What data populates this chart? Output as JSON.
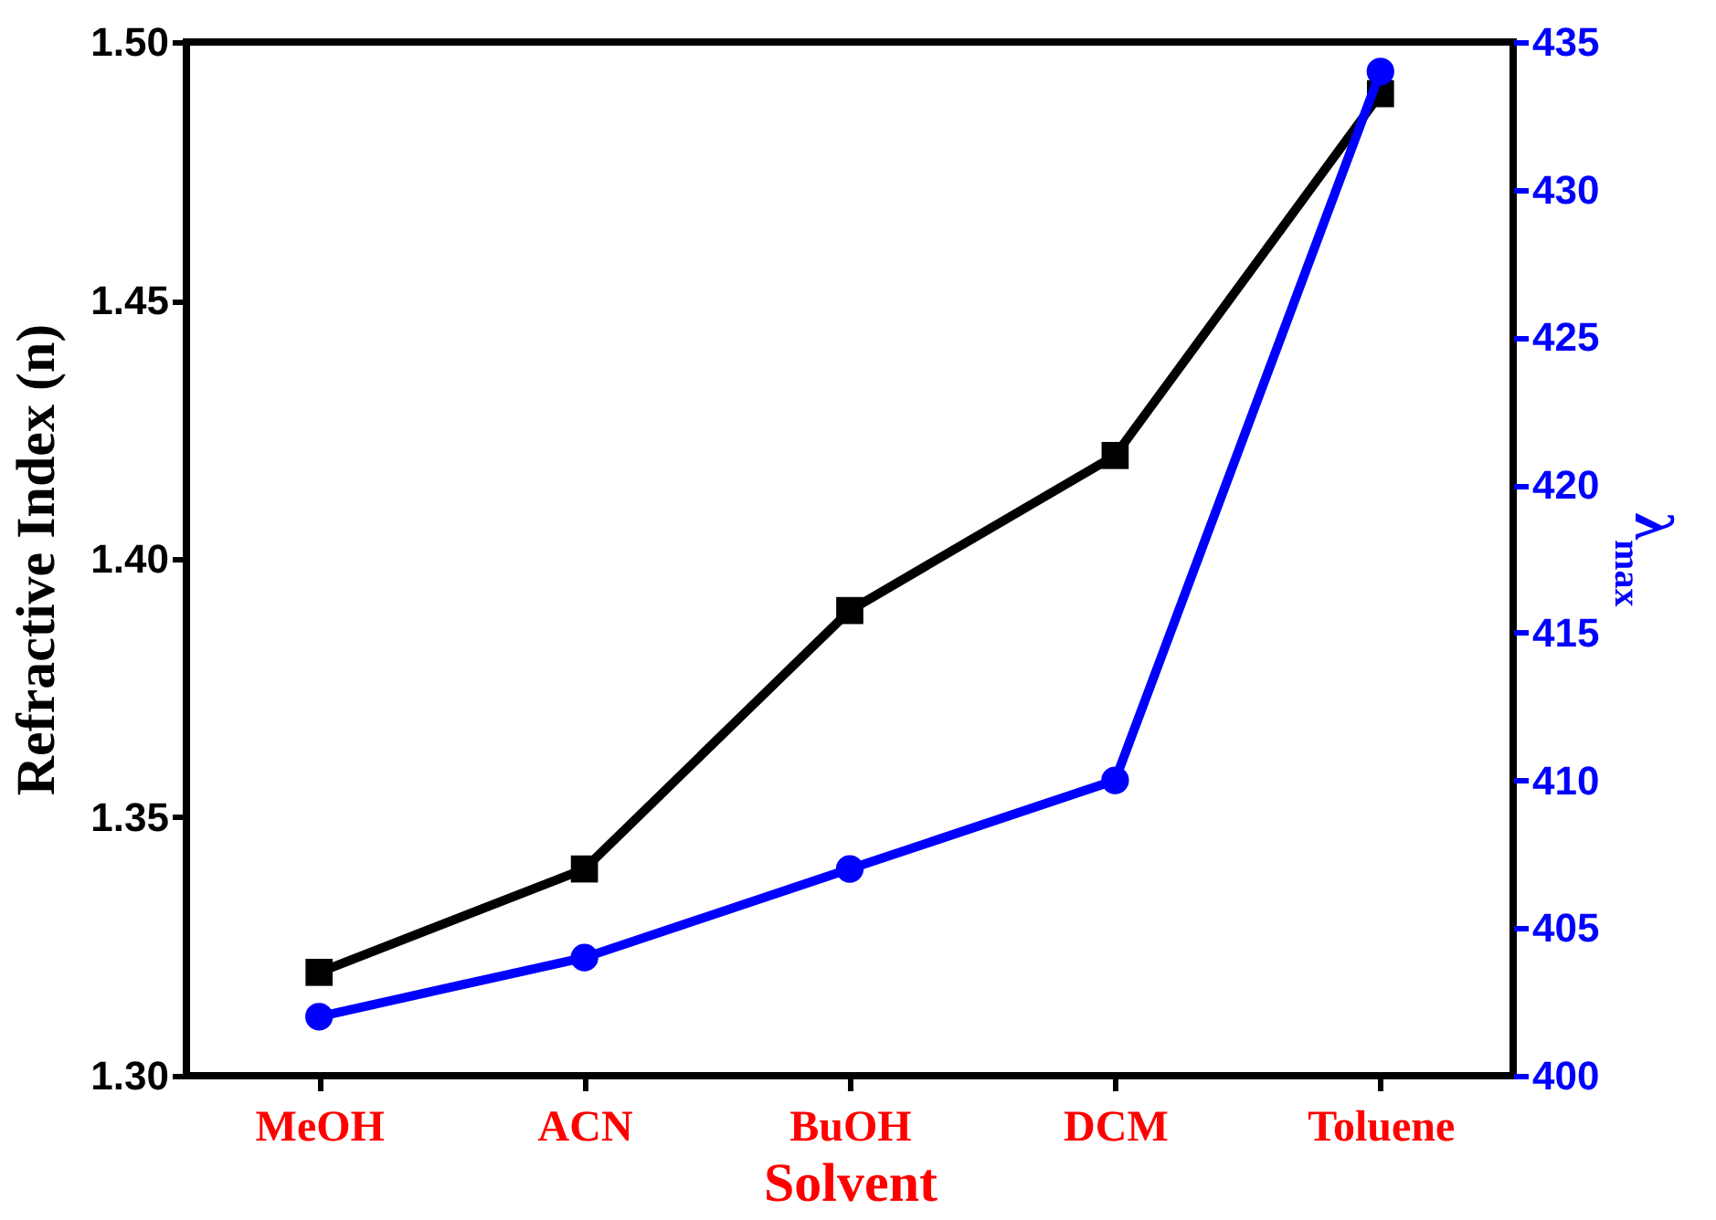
{
  "chart_data": {
    "type": "line",
    "xlabel": "Solvent",
    "ylabel": "Refractive Index (n)",
    "y2label": "λ$_{max}$",
    "categories": [
      "MeOH",
      "ACN",
      "BuOH",
      "DCM",
      "Toluene"
    ],
    "series": [
      {
        "color": "#000000",
        "marker": "square",
        "values": [
          1.32,
          1.34,
          1.39,
          1.42,
          1.49
        ]
      },
      {
        "color": "#0000ff",
        "marker": "circle",
        "axis": "y2",
        "values": [
          402,
          404,
          407,
          410,
          434
        ]
      }
    ],
    "ylim": [
      1.3,
      1.5
    ],
    "yticks": [
      {
        "value": 1.3,
        "label": "1.30"
      },
      {
        "value": 1.35,
        "label": "1.35"
      },
      {
        "value": 1.4,
        "label": "1.40"
      },
      {
        "value": 1.45,
        "label": "1.45"
      },
      {
        "value": 1.5,
        "label": "1.50"
      }
    ],
    "y2lim": [
      400,
      435
    ],
    "y2ticks": [
      400,
      405,
      410,
      415,
      420,
      425,
      430,
      435
    ],
    "grid": false,
    "line_style": "solid"
  }
}
